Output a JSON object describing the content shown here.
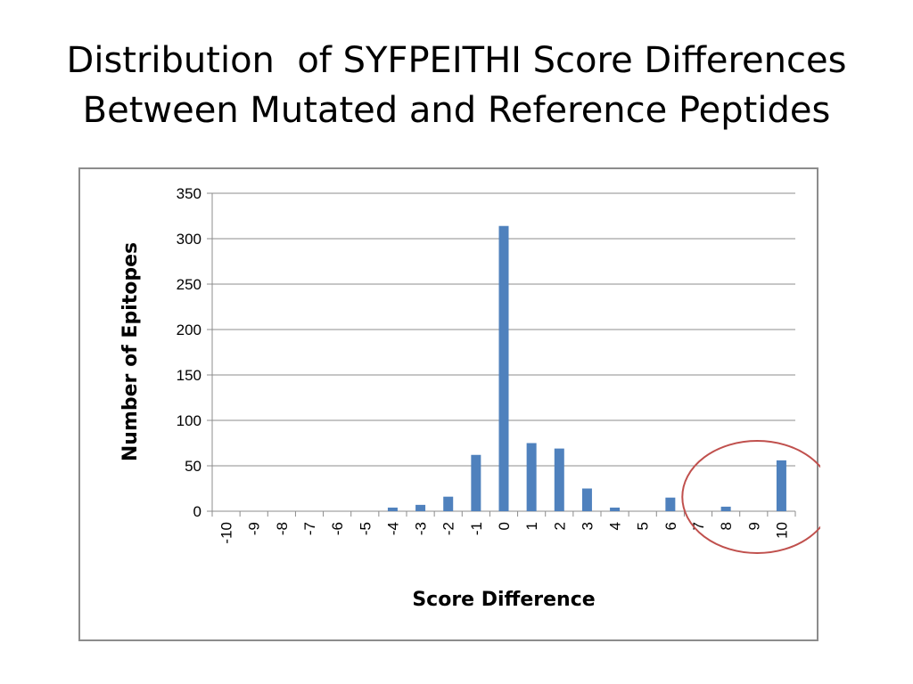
{
  "slide": {
    "title_line1": "Distribution  of SYFPEITHI Score Differences",
    "title_line2": "Between Mutated and Reference Peptides"
  },
  "chart_data": {
    "type": "bar",
    "title": "",
    "xlabel": "Score Difference",
    "ylabel": "Number of Epitopes",
    "categories": [
      "-10",
      "-9",
      "-8",
      "-7",
      "-6",
      "-5",
      "-4",
      "-3",
      "-2",
      "-1",
      "0",
      "1",
      "2",
      "3",
      "4",
      "5",
      "6",
      "7",
      "8",
      "9",
      "10"
    ],
    "values": [
      0,
      0,
      0,
      0,
      0,
      0,
      4,
      7,
      16,
      62,
      314,
      75,
      69,
      25,
      4,
      0,
      15,
      0,
      5,
      0,
      56
    ],
    "ylim": [
      0,
      350
    ],
    "yticks": [
      0,
      50,
      100,
      150,
      200,
      250,
      300,
      350
    ],
    "grid": true,
    "legend": "none",
    "bar_color": "#4f81bd",
    "annotation": {
      "shape": "ellipse",
      "color": "#c0504d",
      "highlights": [
        "8",
        "9",
        "10"
      ]
    }
  }
}
